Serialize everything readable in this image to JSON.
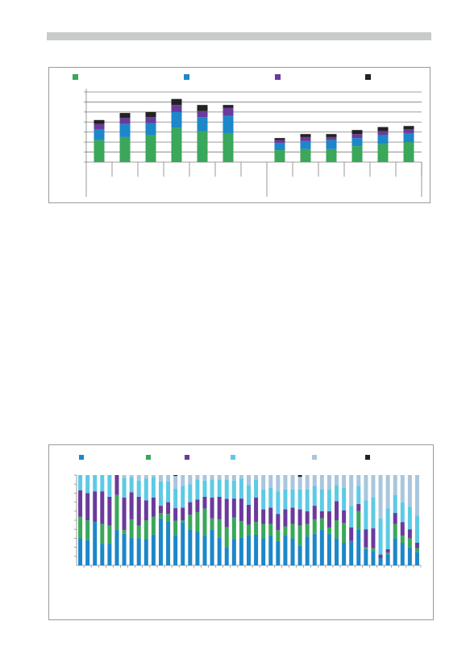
{
  "chart_data": [
    {
      "type": "bar",
      "stacked": true,
      "title": "",
      "xlabel": "",
      "ylabel": "",
      "ylim": [
        0,
        7
      ],
      "y_gridlines": 7,
      "legend_position": "top",
      "groups": [
        {
          "name": "",
          "categories": [
            "",
            "",
            "",
            "",
            "",
            ""
          ]
        },
        {
          "name": "",
          "categories": [
            "",
            "",
            "",
            "",
            "",
            ""
          ]
        }
      ],
      "series": [
        {
          "name": "",
          "color": "#3aa75a",
          "values": [
            2.2,
            2.5,
            2.7,
            3.4,
            3.1,
            2.9,
            1.2,
            1.3,
            1.3,
            1.6,
            1.8,
            2.0
          ]
        },
        {
          "name": "",
          "color": "#1c87c9",
          "values": [
            1.1,
            1.3,
            1.2,
            1.6,
            1.4,
            1.7,
            0.7,
            0.8,
            0.9,
            0.8,
            0.9,
            0.9
          ]
        },
        {
          "name": "",
          "color": "#6a3a9c",
          "values": [
            0.5,
            0.6,
            0.6,
            0.7,
            0.6,
            0.8,
            0.3,
            0.4,
            0.3,
            0.4,
            0.4,
            0.4
          ]
        },
        {
          "name": "",
          "color": "#222222",
          "values": [
            0.4,
            0.5,
            0.5,
            0.6,
            0.6,
            0.3,
            0.2,
            0.3,
            0.3,
            0.4,
            0.4,
            0.3
          ]
        }
      ]
    },
    {
      "type": "bar",
      "stacked": true,
      "percent": true,
      "title": "",
      "xlabel": "",
      "ylabel": "",
      "ylim": [
        0,
        100
      ],
      "y_gridlines": 11,
      "legend_position": "top",
      "categories": [
        "",
        "",
        "",
        "",
        "",
        "",
        "",
        "",
        "",
        "",
        "",
        "",
        "",
        "",
        "",
        "",
        "",
        "",
        "",
        "",
        "",
        "",
        "",
        "",
        "",
        "",
        "",
        "",
        "",
        "",
        "",
        "",
        "",
        "",
        "",
        "",
        "",
        "",
        "",
        "",
        "",
        "",
        "",
        "",
        "",
        "",
        ""
      ],
      "series": [
        {
          "name": "",
          "color": "#1c87c9",
          "values": [
            30,
            28,
            48,
            24,
            24,
            40,
            35,
            31,
            30,
            29,
            34,
            52,
            49,
            34,
            48,
            40,
            37,
            33,
            40,
            31,
            20,
            29,
            31,
            33,
            34,
            30,
            33,
            27,
            33,
            30,
            22,
            32,
            35,
            40,
            35,
            30,
            25,
            27,
            40,
            18,
            16,
            8,
            12,
            30,
            25,
            20,
            15
          ]
        },
        {
          "name": "",
          "color": "#3aa75a",
          "values": [
            24,
            22,
            0,
            22,
            20,
            38,
            4,
            20,
            14,
            21,
            20,
            6,
            8,
            16,
            2,
            16,
            22,
            30,
            12,
            20,
            22,
            24,
            18,
            12,
            14,
            16,
            13,
            12,
            10,
            16,
            22,
            14,
            16,
            12,
            7,
            20,
            22,
            0,
            20,
            2,
            3,
            0,
            2,
            16,
            8,
            10,
            4
          ]
        },
        {
          "name": "",
          "color": "#6a3a9c",
          "values": [
            29,
            30,
            34,
            36,
            32,
            22,
            36,
            30,
            32,
            22,
            21,
            8,
            13,
            14,
            14,
            14,
            14,
            13,
            23,
            25,
            31,
            21,
            25,
            22,
            27,
            16,
            18,
            18,
            19,
            18,
            18,
            14,
            15,
            8,
            18,
            21,
            14,
            15,
            8,
            20,
            22,
            4,
            4,
            12,
            15,
            10,
            6
          ]
        },
        {
          "name": "",
          "color": "#5dcae5",
          "values": [
            17,
            20,
            18,
            18,
            24,
            0,
            22,
            17,
            18,
            24,
            23,
            27,
            23,
            22,
            24,
            20,
            22,
            18,
            20,
            19,
            21,
            20,
            22,
            22,
            20,
            22,
            22,
            25,
            22,
            20,
            22,
            24,
            22,
            24,
            24,
            18,
            25,
            24,
            20,
            32,
            34,
            40,
            45,
            20,
            22,
            25,
            30
          ]
        },
        {
          "name": "",
          "color": "#a9c6dd",
          "values": [
            0,
            0,
            0,
            0,
            0,
            0,
            3,
            2,
            6,
            4,
            2,
            7,
            7,
            14,
            12,
            10,
            5,
            6,
            5,
            5,
            5,
            6,
            4,
            11,
            5,
            16,
            14,
            18,
            16,
            16,
            14,
            16,
            12,
            16,
            16,
            11,
            14,
            34,
            12,
            28,
            25,
            48,
            37,
            22,
            30,
            35,
            45
          ]
        },
        {
          "name": "",
          "color": "#222222",
          "values": [
            0,
            0,
            0,
            0,
            0,
            0,
            0,
            0,
            0,
            0,
            0,
            0,
            0,
            1,
            0,
            0,
            0,
            0,
            0,
            0,
            0,
            0,
            0,
            0,
            0,
            0,
            0,
            0,
            0,
            0,
            2,
            0,
            0,
            0,
            0,
            0,
            0,
            0,
            0,
            0,
            0,
            0,
            0,
            0,
            0,
            0,
            0
          ]
        }
      ]
    }
  ]
}
